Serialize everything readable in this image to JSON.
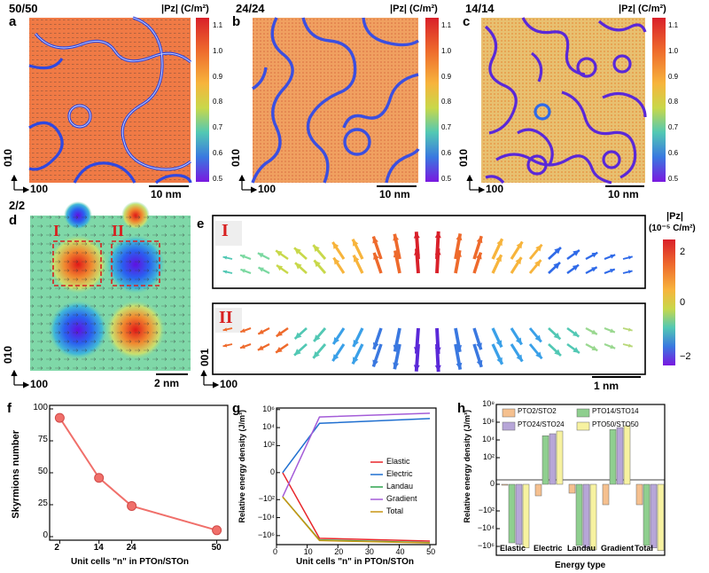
{
  "panels": {
    "a": {
      "letter": "a",
      "title": "50/50",
      "scalebar": "10 nm",
      "axis_v": "010",
      "axis_h": "100"
    },
    "b": {
      "letter": "b",
      "title": "24/24",
      "scalebar": "10 nm",
      "axis_v": "010",
      "axis_h": "100"
    },
    "c": {
      "letter": "c",
      "title": "14/14",
      "scalebar": "10 nm",
      "axis_v": "010",
      "axis_h": "100"
    },
    "d": {
      "letter": "d",
      "title": "2/2",
      "scalebar": "2 nm",
      "axis_v": "010",
      "axis_h": "100",
      "box1": "I",
      "box2": "II"
    },
    "e": {
      "letter": "e",
      "box1": "I",
      "box2": "II",
      "scalebar": "1 nm",
      "axis_v": "001",
      "axis_h": "100"
    },
    "f": {
      "letter": "f"
    },
    "g": {
      "letter": "g"
    },
    "h": {
      "letter": "h"
    }
  },
  "colorbar_top": {
    "title": "|Pz| (C/m²)",
    "ticks": [
      "1.1",
      "1.0",
      "0.9",
      "0.8",
      "0.7",
      "0.6",
      "0.5"
    ],
    "colors": [
      "#d9202a",
      "#ee6a2c",
      "#f7b43c",
      "#c8d84a",
      "#52c8b4",
      "#3a78e0",
      "#7a18e0"
    ]
  },
  "colorbar_e": {
    "title": "|Pz|",
    "unit": "(10⁻⁵ C/m²)",
    "ticks": [
      "2",
      "0",
      "−2"
    ]
  },
  "chart_data": [
    {
      "type": "line",
      "panel": "f",
      "x": [
        2,
        14,
        24,
        50
      ],
      "series": [
        {
          "name": "Skyrmions number",
          "values": [
            93,
            46,
            24,
            5
          ]
        }
      ],
      "xlabel": "Unit cells \"n\" in PTOn/STOn",
      "ylabel": "Skyrmions number",
      "xticks": [
        "2",
        "14",
        "24",
        "50"
      ],
      "yticks": [
        "0",
        "25",
        "50",
        "75",
        "100"
      ],
      "ylim": [
        0,
        100
      ],
      "color": "#f06f6a"
    },
    {
      "type": "line",
      "panel": "g",
      "x": [
        2,
        14,
        50
      ],
      "xlabel": "Unit cells \"n\" in PTOn/STOn",
      "ylabel": "Relative energy density (J/m³)",
      "xticks": [
        "0",
        "10",
        "20",
        "30",
        "40",
        "50"
      ],
      "yticks": [
        "10⁶",
        "10⁴",
        "10²",
        "0",
        "−10²",
        "−10⁴",
        "−10⁶"
      ],
      "scale": "symlog",
      "series": [
        {
          "name": "Elastic",
          "values": [
            0,
            -2000000,
            -4000000
          ],
          "color": "#e8262a"
        },
        {
          "name": "Electric",
          "values": [
            0,
            30000,
            100000
          ],
          "color": "#1f6fd0"
        },
        {
          "name": "Landau",
          "values": [
            -50,
            -3000000,
            -6000000
          ],
          "color": "#2ea24e"
        },
        {
          "name": "Gradient",
          "values": [
            -50,
            150000,
            400000
          ],
          "color": "#a45cd8"
        },
        {
          "name": "Total",
          "values": [
            -50,
            -3500000,
            -6500000
          ],
          "color": "#c89612"
        }
      ]
    },
    {
      "type": "bar",
      "panel": "h",
      "categories": [
        "Elastic",
        "Electric",
        "Landau",
        "Gradient",
        "Total"
      ],
      "xlabel": "Energy type",
      "ylabel": "Relative energy density (J/m³)",
      "yticks": [
        "10⁸",
        "10⁶",
        "10⁴",
        "10²",
        "0",
        "−10²",
        "−10⁴",
        "−10⁶"
      ],
      "scale": "symlog",
      "series": [
        {
          "name": "PTO2/STO2",
          "values": [
            0,
            -2,
            -1,
            -20,
            -20
          ],
          "color": "#f5c08f"
        },
        {
          "name": "PTO14/STO14",
          "values": [
            -400000,
            30000,
            -800000,
            150000,
            -800000
          ],
          "color": "#8fcf8f"
        },
        {
          "name": "PTO24/STO24",
          "values": [
            -600000,
            50000,
            -1500000,
            250000,
            -1500000
          ],
          "color": "#b7a6d8"
        },
        {
          "name": "PTO50/STO50",
          "values": [
            -1500000,
            100000,
            -2500000,
            400000,
            -3000000
          ],
          "color": "#f7f2a0"
        }
      ]
    }
  ]
}
